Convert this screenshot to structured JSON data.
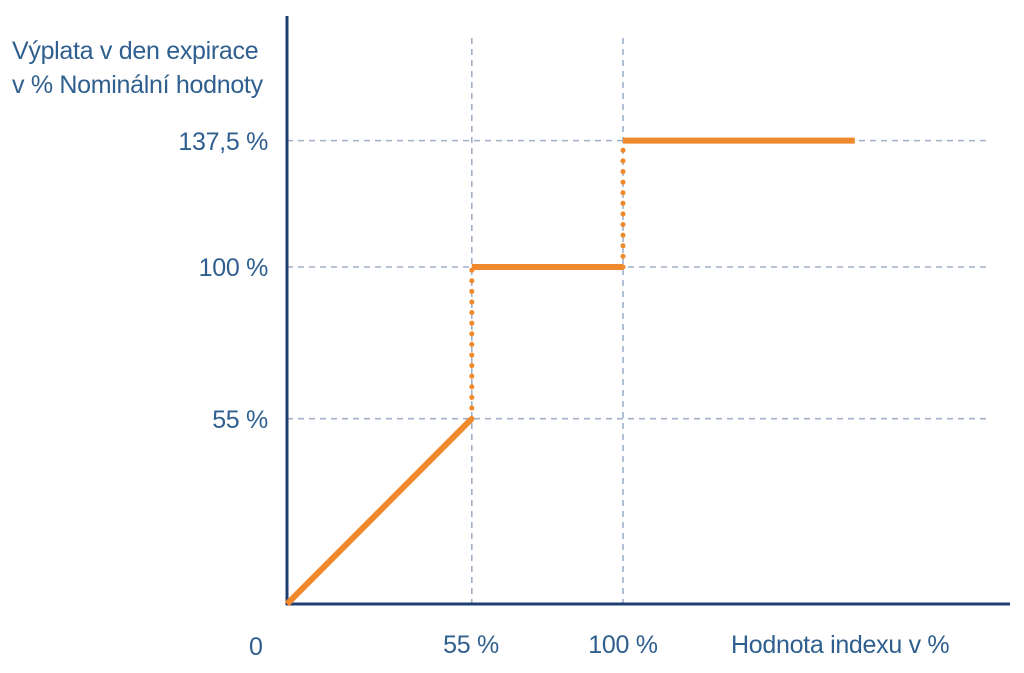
{
  "chart_data": {
    "type": "line",
    "ylabel_lines": [
      "Výplata v den expirace",
      "v % Nominální hodnoty"
    ],
    "xlabel": "Hodnota indexu v %",
    "origin_label": "0",
    "x_ticks": [
      {
        "value": 55,
        "label": "55 %"
      },
      {
        "value": 100,
        "label": "100 %"
      }
    ],
    "y_ticks": [
      {
        "value": 55,
        "label": "55 %"
      },
      {
        "value": 100,
        "label": "100 %"
      },
      {
        "value": 137.5,
        "label": "137,5 %"
      }
    ],
    "xlim": [
      0,
      215
    ],
    "ylim": [
      0,
      137.5
    ],
    "grid": "dashed at tick values",
    "series_color": "#f0892b",
    "axis_color": "#1f3f73",
    "grid_color": "#9fb0c8",
    "solid_segments": [
      {
        "x": [
          0,
          55
        ],
        "y": [
          0,
          55
        ]
      },
      {
        "x": [
          55,
          100
        ],
        "y": [
          100,
          100
        ]
      },
      {
        "x": [
          100,
          169
        ],
        "y": [
          137.5,
          137.5
        ]
      }
    ],
    "jump_segments": [
      {
        "x": [
          55,
          55
        ],
        "y": [
          55,
          100
        ]
      },
      {
        "x": [
          100,
          100
        ],
        "y": [
          100,
          137.5
        ]
      }
    ]
  }
}
